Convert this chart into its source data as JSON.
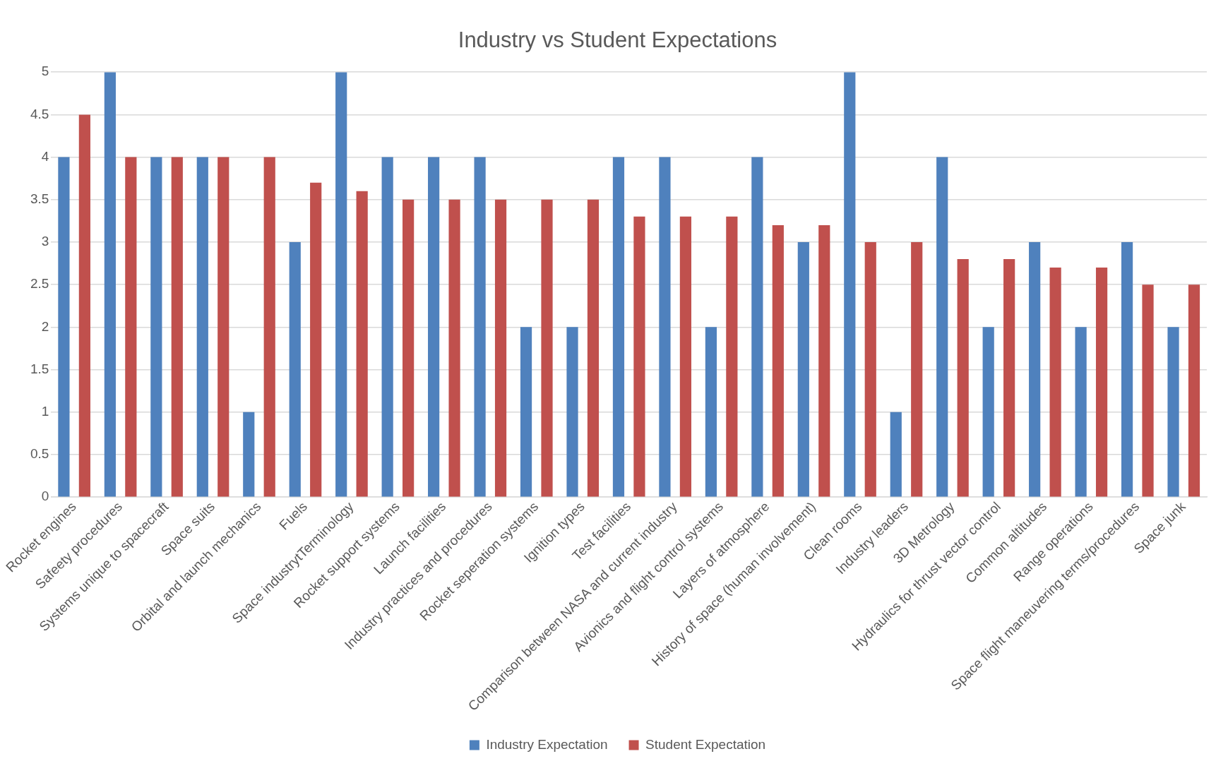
{
  "chart_data": {
    "type": "bar",
    "title": "Industry vs Student Expectations",
    "categories": [
      "Rocket engines",
      "Safeety procedures",
      "Systems unique to spacecraft",
      "Space suits",
      "Orbital and launch mechanics",
      "Fuels",
      "Space industrytTerminology",
      "Rocket support systems",
      "Launch facilities",
      "Industry practices and procedures",
      "Rocket seperation systems",
      "Ignition types",
      "Test facilities",
      "Comparison between NASA and current industry",
      "Avionics and flight control systems",
      "Layers of atmosphere",
      "History of space (human involvement)",
      "Clean rooms",
      "Industry leaders",
      "3D Metrology",
      "Hydraulics for thrust vector control",
      "Common altitudes",
      "Range operations",
      "Space flight maneuvering terms/procedures",
      "Space junk"
    ],
    "series": [
      {
        "name": "Industry Expectation",
        "color": "#4f81bd",
        "values": [
          4,
          5,
          4,
          4,
          1,
          3,
          5,
          4,
          4,
          4,
          2,
          2,
          4,
          4,
          2,
          4,
          3,
          5,
          1,
          4,
          2,
          3,
          2,
          3,
          2
        ]
      },
      {
        "name": "Student Expectation",
        "color": "#c0504d",
        "values": [
          4.5,
          4,
          4,
          4,
          4,
          3.7,
          3.6,
          3.5,
          3.5,
          3.5,
          3.5,
          3.5,
          3.3,
          3.3,
          3.3,
          3.2,
          3.2,
          3,
          3,
          2.8,
          2.8,
          2.7,
          2.7,
          2.5,
          2.5
        ]
      }
    ],
    "ylim": [
      0,
      5
    ],
    "yticks": [
      0,
      0.5,
      1,
      1.5,
      2,
      2.5,
      3,
      3.5,
      4,
      4.5,
      5
    ],
    "grid": "y",
    "legend": "bottom"
  }
}
